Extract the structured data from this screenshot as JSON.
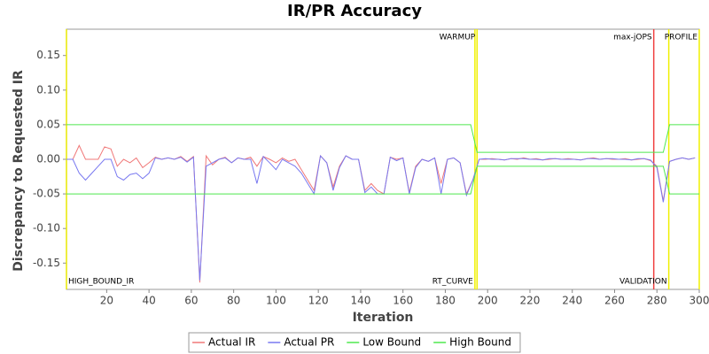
{
  "chart_data": {
    "type": "line",
    "title": "IR/PR Accuracy",
    "x_label": "Iteration",
    "y_label": "Discrepancy to Requested IR",
    "xlim": [
      1,
      300
    ],
    "ylim": [
      -0.188,
      0.188
    ],
    "xticks": [
      20,
      40,
      60,
      80,
      100,
      120,
      140,
      160,
      180,
      200,
      220,
      240,
      260,
      280,
      300
    ],
    "yticks": [
      -0.15,
      {
        "value": -0.1,
        "label": "-0.10"
      },
      -0.05,
      {
        "value": 0,
        "label": "0.00"
      },
      0.05,
      {
        "value": 0.1,
        "label": "0.10"
      },
      0.15
    ],
    "grid": false,
    "legend": "bottom",
    "series": [
      {
        "name": "Actual IR",
        "color": "#f07878",
        "x": [
          1,
          4,
          7,
          10,
          13,
          16,
          19,
          22,
          25,
          28,
          31,
          34,
          37,
          40,
          43,
          46,
          49,
          52,
          55,
          58,
          61,
          64,
          67,
          70,
          73,
          76,
          79,
          82,
          85,
          88,
          91,
          94,
          97,
          100,
          103,
          106,
          109,
          112,
          115,
          118,
          121,
          124,
          127,
          130,
          133,
          136,
          139,
          142,
          145,
          148,
          151,
          154,
          157,
          160,
          163,
          166,
          169,
          172,
          175,
          178,
          181,
          184,
          187,
          190,
          193,
          196,
          199,
          202,
          205,
          208,
          211,
          214,
          217,
          220,
          223,
          226,
          229,
          232,
          235,
          238,
          241,
          244,
          247,
          250,
          253,
          256,
          259,
          262,
          265,
          268,
          271,
          274,
          277,
          280,
          283,
          286,
          289,
          292,
          295,
          298
        ],
        "values": [
          0,
          0,
          0.02,
          0,
          0,
          0,
          0.018,
          0.015,
          -0.01,
          0,
          -0.005,
          0.002,
          -0.012,
          -0.005,
          0.003,
          0,
          0.002,
          0,
          0.004,
          -0.003,
          0.004,
          -0.178,
          0.005,
          -0.008,
          0,
          0.003,
          -0.005,
          0.002,
          0,
          0.003,
          -0.01,
          0.004,
          0,
          -0.005,
          0.002,
          -0.003,
          0,
          -0.015,
          -0.03,
          -0.045,
          0.005,
          -0.005,
          -0.04,
          -0.01,
          0.005,
          0,
          0,
          -0.045,
          -0.035,
          -0.045,
          -0.05,
          0.003,
          0,
          0.002,
          -0.048,
          -0.01,
          0,
          -0.003,
          0.002,
          -0.035,
          0,
          0.002,
          -0.005,
          -0.05,
          -0.03,
          0,
          0,
          0.001,
          0,
          -0.001,
          0.001,
          0,
          0.002,
          0,
          0.001,
          -0.001,
          0,
          0.001,
          0,
          0.001,
          0,
          -0.001,
          0.001,
          0.002,
          0,
          0.001,
          0,
          0,
          0.001,
          -0.001,
          0,
          0.001,
          -0.002,
          -0.01,
          -0.06,
          -0.003,
          0,
          0.002,
          0,
          0.002
        ]
      },
      {
        "name": "Actual PR",
        "color": "#7878f0",
        "x": [
          1,
          4,
          7,
          10,
          13,
          16,
          19,
          22,
          25,
          28,
          31,
          34,
          37,
          40,
          43,
          46,
          49,
          52,
          55,
          58,
          61,
          64,
          67,
          70,
          73,
          76,
          79,
          82,
          85,
          88,
          91,
          94,
          97,
          100,
          103,
          106,
          109,
          112,
          115,
          118,
          121,
          124,
          127,
          130,
          133,
          136,
          139,
          142,
          145,
          148,
          151,
          154,
          157,
          160,
          163,
          166,
          169,
          172,
          175,
          178,
          181,
          184,
          187,
          190,
          193,
          196,
          199,
          202,
          205,
          208,
          211,
          214,
          217,
          220,
          223,
          226,
          229,
          232,
          235,
          238,
          241,
          244,
          247,
          250,
          253,
          256,
          259,
          262,
          265,
          268,
          271,
          274,
          277,
          280,
          283,
          286,
          289,
          292,
          295,
          298
        ],
        "values": [
          0,
          0,
          -0.02,
          -0.03,
          -0.02,
          -0.01,
          0,
          0,
          -0.025,
          -0.03,
          -0.022,
          -0.02,
          -0.028,
          -0.02,
          0.002,
          0,
          0.002,
          0,
          0.003,
          -0.004,
          0.003,
          -0.175,
          -0.01,
          -0.005,
          0,
          0.002,
          -0.005,
          0.002,
          0,
          0,
          -0.035,
          0.004,
          -0.005,
          -0.015,
          0,
          -0.005,
          -0.01,
          -0.02,
          -0.035,
          -0.05,
          0.005,
          -0.005,
          -0.045,
          -0.012,
          0.005,
          0,
          0,
          -0.048,
          -0.04,
          -0.05,
          -0.05,
          0.003,
          -0.002,
          0.002,
          -0.05,
          -0.012,
          0,
          -0.003,
          0.002,
          -0.05,
          0,
          0.002,
          -0.005,
          -0.052,
          -0.03,
          0,
          0.001,
          0,
          0,
          -0.001,
          0.001,
          0.001,
          0.001,
          0,
          0,
          -0.001,
          0.001,
          0.001,
          0,
          0,
          0,
          -0.001,
          0.001,
          0.001,
          0,
          0.001,
          0.001,
          0,
          0,
          -0.001,
          0.001,
          0.001,
          -0.001,
          -0.012,
          -0.062,
          -0.003,
          0,
          0.002,
          0,
          0.002
        ]
      },
      {
        "name": "Low Bound",
        "color": "#4ee84e",
        "x": [
          1,
          192,
          195,
          283,
          286,
          300
        ],
        "values": [
          -0.05,
          -0.05,
          -0.01,
          -0.01,
          -0.05,
          -0.05
        ]
      },
      {
        "name": "High Bound",
        "color": "#4ee84e",
        "x": [
          1,
          192,
          195,
          283,
          286,
          300
        ],
        "values": [
          0.05,
          0.05,
          0.01,
          0.01,
          0.05,
          0.05
        ]
      }
    ],
    "markers": [
      {
        "label": "HIGH_BOUND_IR",
        "x": 1,
        "color": "#e8e800",
        "position": "bottom-right"
      },
      {
        "label": "RT_CURVE",
        "x": 194,
        "color": "#f0f000",
        "position": "bottom-left"
      },
      {
        "label": "WARMUP",
        "x": 195,
        "color": "#f0f000",
        "position": "top-left"
      },
      {
        "label": "max-jOPS",
        "x": 278.5,
        "color": "#f04040",
        "position": "top-left"
      },
      {
        "label": "VALIDATION",
        "x": 285.6,
        "color": "#f0f000",
        "position": "bottom-left"
      },
      {
        "label": "PROFILE",
        "x": 300,
        "color": "#f0f000",
        "position": "top-left"
      }
    ]
  }
}
